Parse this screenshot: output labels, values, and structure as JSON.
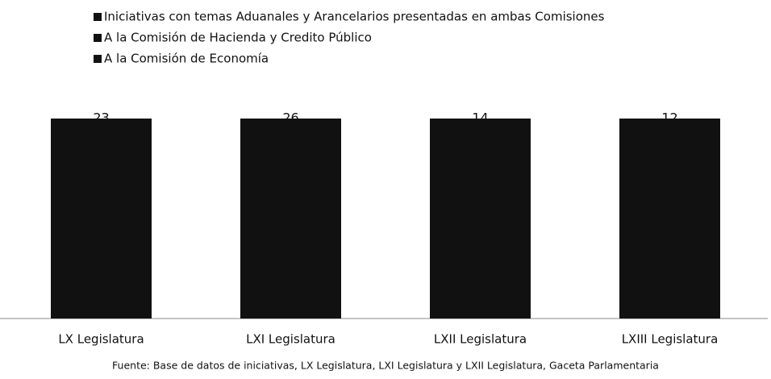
{
  "chart_data": {
    "type": "bar100",
    "categories": [
      "LX Legislatura",
      "LXI Legislatura",
      "LXII Legislatura",
      "LXIII Legislatura"
    ],
    "series": [
      {
        "name": "Iniciativas con temas Aduanales y Arancelarios presentadas en ambas Comisiones",
        "color": "#111111",
        "values": [
          23,
          26,
          14,
          12
        ]
      },
      {
        "name": "A la Comisión de Hacienda y Credito Público",
        "color": "#111111",
        "values": [
          null,
          null,
          null,
          null
        ]
      },
      {
        "name": "A la Comisión de Economía",
        "color": "#111111",
        "values": [
          null,
          null,
          null,
          null
        ]
      }
    ],
    "source": "Fuente: Base de datos de iniciativas, LX Legislatura, LXI Legislatura y LXII Legislatura, Gaceta Parlamentaria"
  }
}
